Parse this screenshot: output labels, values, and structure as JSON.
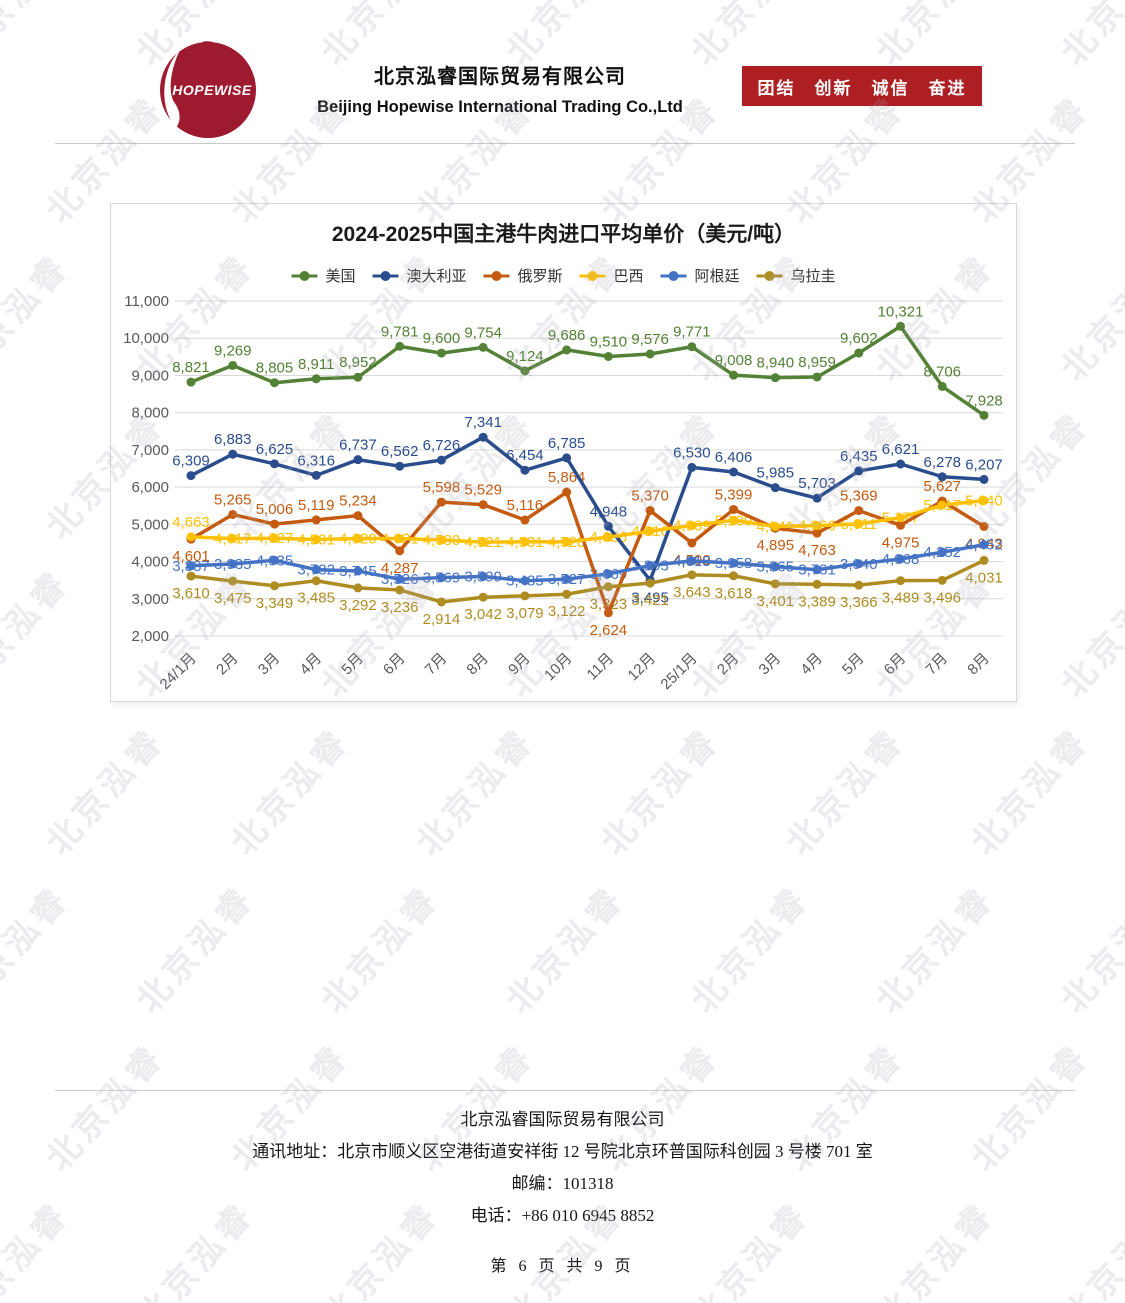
{
  "header": {
    "logo_text": "HOPEWISE",
    "logo_color": "#9E1B2F",
    "company_cn": "北京泓睿国际贸易有限公司",
    "company_en": "Beijing Hopewise International Trading Co.,Ltd",
    "slogan": "团结　创新　诚信　奋进",
    "banner_color": "#AE1F23"
  },
  "watermark": {
    "text": "北京泓睿"
  },
  "chart_data": {
    "type": "line",
    "title": "2024-2025中国主港牛肉进口平均单价（美元/吨）",
    "categories": [
      "24/1月",
      "2月",
      "3月",
      "4月",
      "5月",
      "6月",
      "7月",
      "8月",
      "9月",
      "10月",
      "11月",
      "12月",
      "25/1月",
      "2月",
      "3月",
      "4月",
      "5月",
      "6月",
      "7月",
      "8月"
    ],
    "ylim": [
      2000,
      11000
    ],
    "ytick_step": 1000,
    "grid": "horizontal",
    "legend_position": "top",
    "series": [
      {
        "name": "美国",
        "color": "#538135",
        "label_pos": "above",
        "values": [
          8821,
          9269,
          8805,
          8911,
          8952,
          9781,
          9600,
          9754,
          9124,
          9686,
          9510,
          9576,
          9771,
          9008,
          8940,
          8959,
          9602,
          10321,
          8706,
          7928
        ]
      },
      {
        "name": "澳大利亚",
        "color": "#2A4D8E",
        "label_pos": "above",
        "label_pos_overrides": {
          "11": "below"
        },
        "values": [
          6309,
          6883,
          6625,
          6316,
          6737,
          6562,
          6726,
          7341,
          6454,
          6785,
          4948,
          3495,
          6530,
          6406,
          5985,
          5703,
          6435,
          6621,
          6278,
          6207
        ]
      },
      {
        "name": "俄罗斯",
        "color": "#C55A11",
        "label_pos": "threshold",
        "values": [
          4601,
          5265,
          5006,
          5119,
          5234,
          4287,
          5598,
          5529,
          5116,
          5864,
          2624,
          5370,
          4500,
          5399,
          4895,
          4763,
          5369,
          4975,
          5627,
          4943
        ]
      },
      {
        "name": "巴西",
        "color": "#FFC000",
        "label_pos": "center",
        "label_pos_overrides": {
          "0": "above"
        },
        "values": [
          4663,
          4617,
          4627,
          4591,
          4620,
          4621,
          4580,
          4521,
          4531,
          4528,
          4656,
          4816,
          4969,
          5109,
          4941,
          4966,
          5011,
          5177,
          5517,
          5640
        ]
      },
      {
        "name": "阿根廷",
        "color": "#4472C4",
        "label_pos": "center",
        "values": [
          3887,
          3935,
          4035,
          3782,
          3745,
          3526,
          3569,
          3599,
          3485,
          3527,
          3669,
          3893,
          4018,
          3958,
          3865,
          3781,
          3940,
          4068,
          4252,
          4452
        ]
      },
      {
        "name": "乌拉圭",
        "color": "#AF8C21",
        "label_pos": "below",
        "values": [
          3610,
          3475,
          3349,
          3485,
          3292,
          3236,
          2914,
          3042,
          3079,
          3122,
          3323,
          3421,
          3643,
          3618,
          3401,
          3389,
          3366,
          3489,
          3496,
          4031
        ]
      }
    ]
  },
  "footer": {
    "company": "北京泓睿国际贸易有限公司",
    "address": "通讯地址：北京市顺义区空港街道安祥街 12 号院北京环普国际科创园 3 号楼 701 室",
    "postcode": "邮编：101318",
    "phone": "电话：+86 010 6945 8852",
    "page_indicator": "第 6 页 共 9 页"
  }
}
